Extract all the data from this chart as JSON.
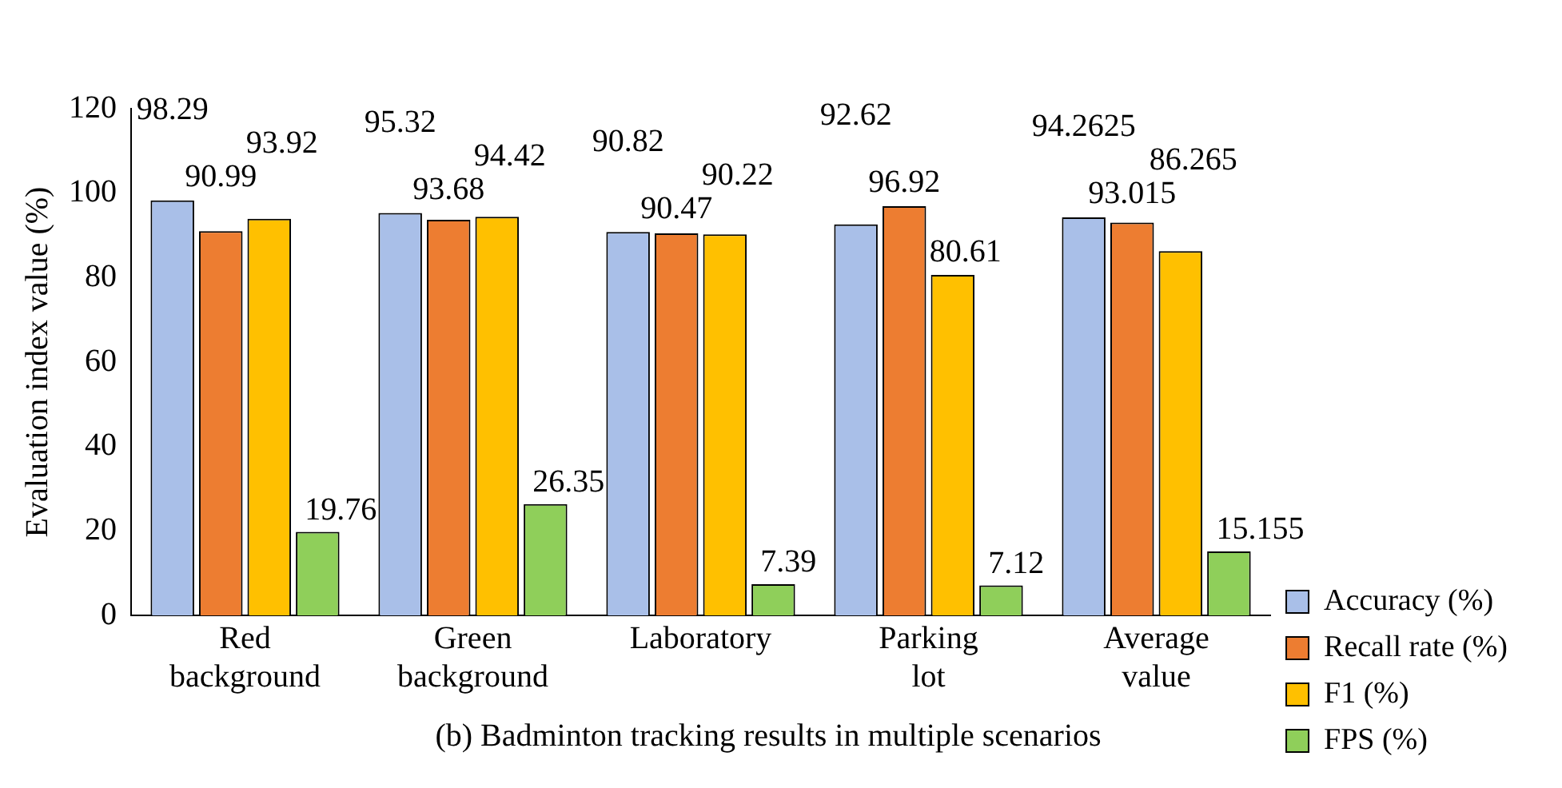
{
  "chart_data": {
    "type": "bar",
    "title": "(b) Badminton tracking results in multiple scenarios",
    "ylabel": "Evaluation index value (%)",
    "categories": [
      "Red background",
      "Green background",
      "Laboratory",
      "Parking lot",
      "Average value"
    ],
    "series": [
      {
        "name": "Accuracy (%)",
        "color": "#a9bfe8",
        "values": [
          98.29,
          95.32,
          90.82,
          92.62,
          94.2625
        ]
      },
      {
        "name": "Recall rate (%)",
        "color": "#ed7d31",
        "values": [
          90.99,
          93.68,
          90.47,
          96.92,
          93.015
        ]
      },
      {
        "name": "F1 (%)",
        "color": "#ffc000",
        "values": [
          93.92,
          94.42,
          90.22,
          80.61,
          86.265
        ]
      },
      {
        "name": "FPS (%)",
        "color": "#8fcf5a",
        "values": [
          19.76,
          26.35,
          7.39,
          7.12,
          15.155
        ]
      }
    ],
    "ylim": [
      0,
      120
    ],
    "yticks": [
      0,
      20,
      40,
      60,
      80,
      100,
      120
    ],
    "grid": false,
    "legend": "right",
    "data_labels": true
  }
}
